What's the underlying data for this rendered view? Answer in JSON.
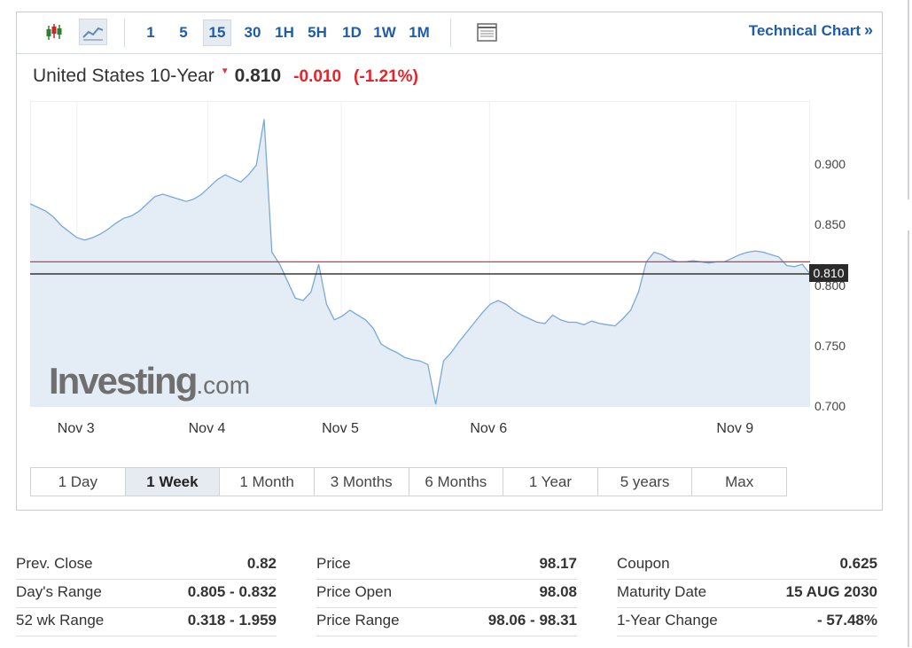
{
  "toolbar": {
    "icons": [
      "candlestick-icon",
      "area-chart-icon",
      "table-icon"
    ],
    "timeframes": [
      "1",
      "5",
      "15",
      "30",
      "1H",
      "5H",
      "1D",
      "1W",
      "1M"
    ],
    "active_timeframe": "15",
    "technical_chart_label": "Technical Chart",
    "technical_chart_chevron": "»"
  },
  "instrument": {
    "name": "United States 10-Year",
    "direction_arrow": "▼",
    "last": "0.810",
    "change": "-0.010",
    "change_pct": "(-1.21%)"
  },
  "watermark": {
    "brand": "Investing",
    "suffix": ".com"
  },
  "chart_data": {
    "type": "area",
    "y_ticks": [
      "0.900",
      "0.850",
      "0.800",
      "0.750",
      "0.700"
    ],
    "ylim": [
      0.7,
      0.953
    ],
    "x_ticks": [
      "Nov 3",
      "Nov 4",
      "Nov 5",
      "Nov 6",
      "Nov 9"
    ],
    "x_tick_positions": [
      0.06,
      0.228,
      0.399,
      0.589,
      0.905
    ],
    "last_value_label": "0.810",
    "prev_close_line": 0.82,
    "current_line": 0.81,
    "series": [
      {
        "x": [
          0,
          0.01,
          0.02,
          0.03,
          0.04,
          0.05,
          0.06,
          0.07,
          0.08,
          0.09,
          0.1,
          0.11,
          0.12,
          0.13,
          0.14,
          0.15,
          0.16,
          0.17,
          0.18,
          0.19,
          0.2,
          0.21,
          0.22,
          0.23,
          0.24,
          0.25,
          0.26,
          0.27,
          0.28,
          0.29,
          0.3,
          0.31,
          0.32,
          0.33,
          0.34,
          0.35,
          0.36,
          0.37,
          0.38,
          0.39,
          0.4,
          0.41,
          0.42,
          0.43,
          0.44,
          0.45,
          0.46,
          0.47,
          0.48,
          0.49,
          0.5,
          0.51,
          0.52,
          0.53,
          0.54,
          0.55,
          0.56,
          0.57,
          0.58,
          0.59,
          0.6,
          0.61,
          0.62,
          0.63,
          0.64,
          0.65,
          0.66,
          0.67,
          0.68,
          0.69,
          0.7,
          0.71,
          0.72,
          0.73,
          0.74,
          0.75,
          0.76,
          0.77,
          0.78,
          0.79,
          0.8,
          0.81,
          0.82,
          0.83,
          0.84,
          0.85,
          0.86,
          0.87,
          0.88,
          0.89,
          0.9,
          0.91,
          0.92,
          0.93,
          0.94,
          0.95,
          0.96,
          0.97,
          0.98,
          0.99,
          1.0
        ],
        "values": [
          0.868,
          0.865,
          0.862,
          0.857,
          0.85,
          0.845,
          0.84,
          0.838,
          0.84,
          0.843,
          0.847,
          0.852,
          0.856,
          0.858,
          0.862,
          0.868,
          0.874,
          0.876,
          0.874,
          0.872,
          0.87,
          0.872,
          0.876,
          0.882,
          0.888,
          0.892,
          0.889,
          0.886,
          0.892,
          0.9,
          0.938,
          0.828,
          0.818,
          0.804,
          0.79,
          0.788,
          0.795,
          0.818,
          0.785,
          0.772,
          0.775,
          0.78,
          0.776,
          0.772,
          0.765,
          0.752,
          0.748,
          0.745,
          0.741,
          0.739,
          0.738,
          0.735,
          0.702,
          0.738,
          0.745,
          0.754,
          0.762,
          0.77,
          0.778,
          0.785,
          0.788,
          0.785,
          0.78,
          0.776,
          0.773,
          0.77,
          0.769,
          0.776,
          0.772,
          0.77,
          0.77,
          0.768,
          0.771,
          0.769,
          0.768,
          0.767,
          0.773,
          0.78,
          0.795,
          0.82,
          0.828,
          0.826,
          0.822,
          0.82,
          0.82,
          0.821,
          0.82,
          0.819,
          0.82,
          0.82,
          0.823,
          0.826,
          0.828,
          0.829,
          0.828,
          0.826,
          0.824,
          0.817,
          0.816,
          0.818,
          0.81
        ]
      }
    ]
  },
  "range_buttons": [
    "1 Day",
    "1 Week",
    "1 Month",
    "3 Months",
    "6 Months",
    "1 Year",
    "5 years",
    "Max"
  ],
  "active_range": "1 Week",
  "stats": {
    "col1": [
      {
        "label": "Prev. Close",
        "value": "0.82"
      },
      {
        "label": "Day's Range",
        "value": "0.805 - 0.832"
      },
      {
        "label": "52 wk Range",
        "value": "0.318 - 1.959"
      }
    ],
    "col2": [
      {
        "label": "Price",
        "value": "98.17"
      },
      {
        "label": "Price Open",
        "value": "98.08"
      },
      {
        "label": "Price Range",
        "value": "98.06 - 98.31"
      }
    ],
    "col3": [
      {
        "label": "Coupon",
        "value": "0.625"
      },
      {
        "label": "Maturity Date",
        "value": "15 AUG 2030"
      },
      {
        "label": "1-Year Change",
        "value": "- 57.48%"
      }
    ]
  },
  "colors": {
    "accent": "#1f5da8",
    "negative": "#e8222a",
    "line": "#7aa9d6",
    "area_fill": "#e4edf6",
    "prev_close_line": "#d9363e",
    "current_line": "#111111"
  }
}
